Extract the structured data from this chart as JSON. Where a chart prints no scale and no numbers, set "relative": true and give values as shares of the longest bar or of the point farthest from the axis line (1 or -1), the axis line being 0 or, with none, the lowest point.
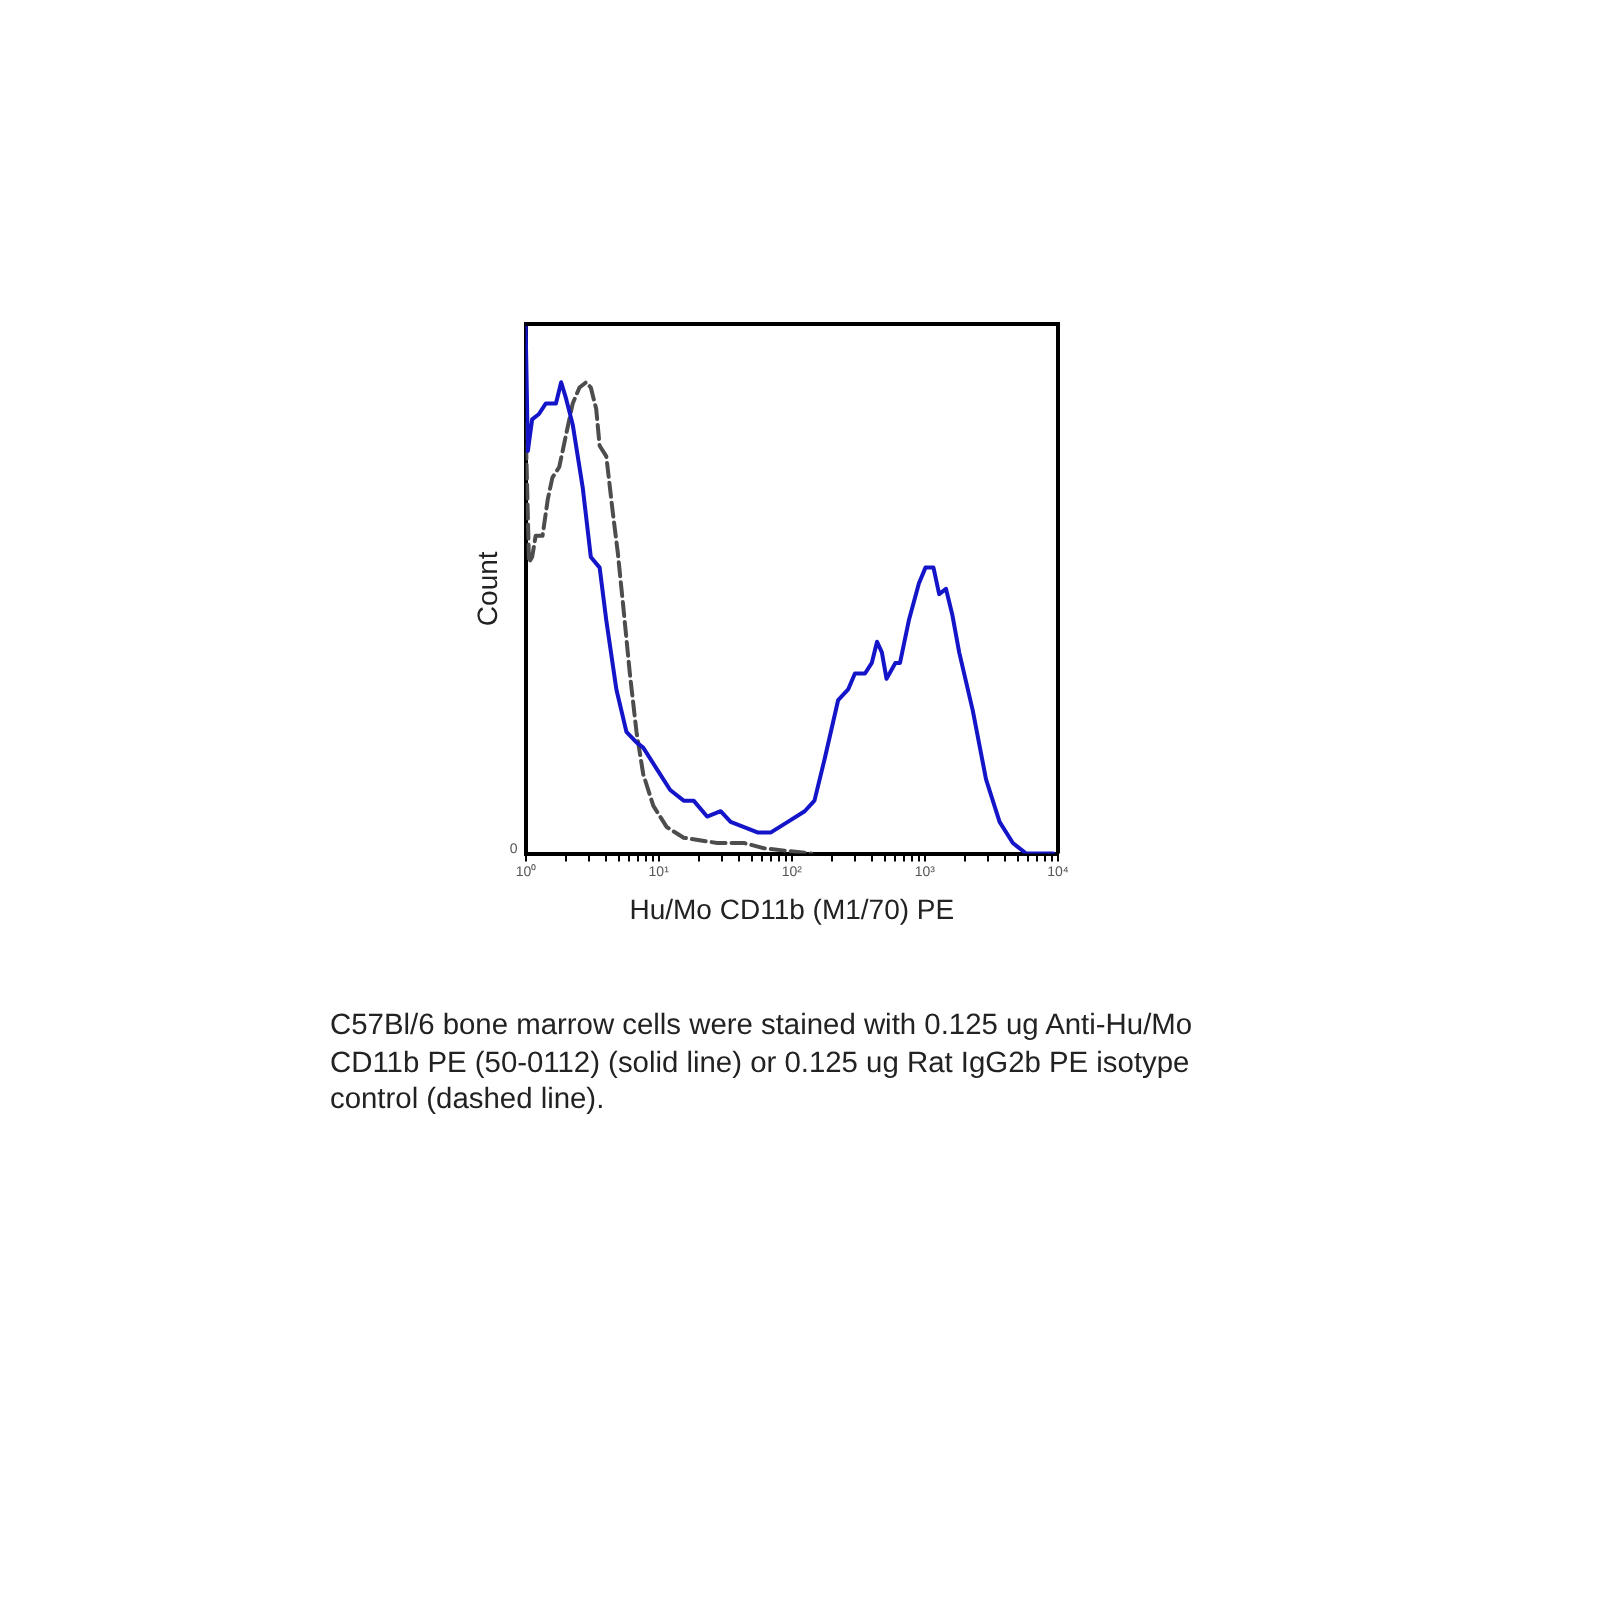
{
  "chart_data": {
    "type": "line",
    "xlabel": "Hu/Mo CD11b (M1/70) PE",
    "ylabel": "Count",
    "annotations": [
      "0",
      "C57Bl/6 bone marrow cells were stained with 0.125 ug Anti-Hu/Mo CD11b PE (50-0112) (solid line) or 0.125 ug Rat IgG2b PE isotype control (dashed line)."
    ],
    "relative": true,
    "log": "x",
    "xlim": [
      1,
      10000
    ],
    "xticks": [
      {
        "value": 1,
        "label": "10⁰"
      },
      {
        "value": 2,
        "label": null
      },
      {
        "value": 3,
        "label": null
      },
      {
        "value": 4,
        "label": null
      },
      {
        "value": 5,
        "label": null
      },
      {
        "value": 6,
        "label": null
      },
      {
        "value": 7,
        "label": null
      },
      {
        "value": 8,
        "label": null
      },
      {
        "value": 9,
        "label": null
      },
      {
        "value": 10,
        "label": "10¹"
      },
      {
        "value": 20,
        "label": null
      },
      {
        "value": 30,
        "label": null
      },
      {
        "value": 40,
        "label": null
      },
      {
        "value": 50,
        "label": null
      },
      {
        "value": 60,
        "label": null
      },
      {
        "value": 70,
        "label": null
      },
      {
        "value": 80,
        "label": null
      },
      {
        "value": 90,
        "label": null
      },
      {
        "value": 100,
        "label": "10²"
      },
      {
        "value": 200,
        "label": null
      },
      {
        "value": 300,
        "label": null
      },
      {
        "value": 400,
        "label": null
      },
      {
        "value": 500,
        "label": null
      },
      {
        "value": 600,
        "label": null
      },
      {
        "value": 700,
        "label": null
      },
      {
        "value": 800,
        "label": null
      },
      {
        "value": 900,
        "label": null
      },
      {
        "value": 1000,
        "label": "10³"
      },
      {
        "value": 2000,
        "label": null
      },
      {
        "value": 3000,
        "label": null
      },
      {
        "value": 4000,
        "label": null
      },
      {
        "value": 5000,
        "label": null
      },
      {
        "value": 6000,
        "label": null
      },
      {
        "value": 7000,
        "label": null
      },
      {
        "value": 8000,
        "label": null
      },
      {
        "value": 9000,
        "label": null
      },
      {
        "value": 10000,
        "label": "10⁴"
      }
    ],
    "grid": false,
    "marker": "none",
    "series": [
      {
        "color": "#1414c8",
        "line_style": "solid",
        "x": [
          1,
          1.04,
          1.12,
          1.26,
          1.42,
          1.69,
          1.85,
          2.01,
          2.26,
          2.69,
          3.09,
          3.6,
          4.04,
          4.81,
          5.72,
          6.81,
          7.65,
          9.66,
          12.2,
          15.4,
          18.3,
          23.1,
          29.2,
          34.7,
          43.8,
          55.2,
          69.7,
          93.3,
          125,
          148,
          177,
          223,
          265,
          298,
          355,
          399,
          437,
          475,
          515,
          600,
          650,
          757,
          901,
          1010,
          1160,
          1280,
          1440,
          1610,
          1810,
          2290,
          2880,
          3640,
          4580,
          5770,
          9230
        ],
        "values": [
          1.0,
          0.76,
          0.82,
          0.83,
          0.85,
          0.85,
          0.89,
          0.86,
          0.81,
          0.69,
          0.56,
          0.54,
          0.44,
          0.31,
          0.23,
          0.21,
          0.2,
          0.16,
          0.12,
          0.1,
          0.1,
          0.07,
          0.08,
          0.06,
          0.05,
          0.04,
          0.04,
          0.06,
          0.08,
          0.1,
          0.18,
          0.29,
          0.31,
          0.34,
          0.34,
          0.36,
          0.4,
          0.38,
          0.33,
          0.36,
          0.36,
          0.44,
          0.51,
          0.54,
          0.54,
          0.49,
          0.5,
          0.45,
          0.38,
          0.27,
          0.14,
          0.06,
          0.02,
          0,
          0
        ]
      },
      {
        "color": "#4d4d4d",
        "line_style": "dashed",
        "x": [
          1,
          1.06,
          1.12,
          1.19,
          1.34,
          1.47,
          1.59,
          1.79,
          2.01,
          2.26,
          2.54,
          2.85,
          3.09,
          3.39,
          3.6,
          4.04,
          4.54,
          4.92,
          5.4,
          6.07,
          6.81,
          7.65,
          9.12,
          11.5,
          15.4,
          27.5,
          43.8,
          62,
          140
        ],
        "values": [
          0.81,
          0.55,
          0.56,
          0.6,
          0.6,
          0.67,
          0.71,
          0.73,
          0.79,
          0.85,
          0.88,
          0.89,
          0.88,
          0.84,
          0.77,
          0.75,
          0.64,
          0.57,
          0.47,
          0.34,
          0.23,
          0.15,
          0.09,
          0.05,
          0.03,
          0.02,
          0.02,
          0.01,
          0
        ]
      }
    ]
  }
}
